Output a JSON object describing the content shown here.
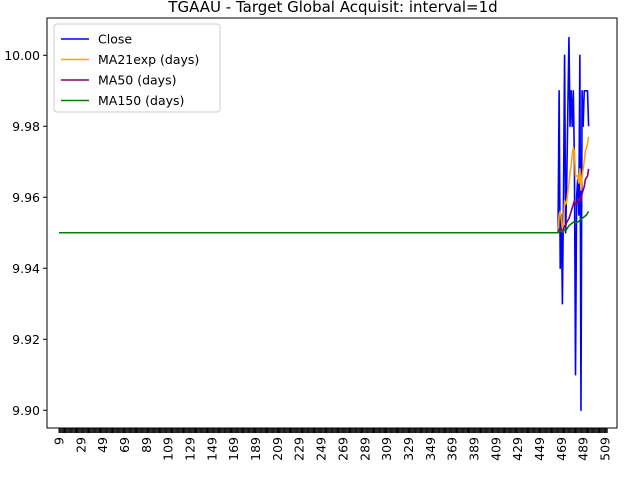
{
  "chart_data": {
    "type": "line",
    "title": "TGAAU - Target Global Acquisit: interval=1d",
    "xlabel": "",
    "ylabel": "",
    "xlim": [
      -2,
      520
    ],
    "ylim": [
      9.895,
      10.0105
    ],
    "grid": false,
    "legend_position": "upper-left",
    "x_ticks": [
      9,
      29,
      49,
      69,
      89,
      109,
      129,
      149,
      169,
      189,
      209,
      229,
      249,
      269,
      289,
      309,
      329,
      349,
      369,
      389,
      409,
      429,
      449,
      469,
      489,
      509
    ],
    "y_ticks": [
      9.9,
      9.92,
      9.94,
      9.96,
      9.98,
      10.0
    ],
    "y_tick_labels": [
      "9.90",
      "9.92",
      "9.94",
      "9.96",
      "9.98",
      "10.00"
    ],
    "categories_range": [
      9,
      511
    ],
    "series": [
      {
        "name": "Close",
        "color": "#0000ff",
        "points": [
          [
            9,
            9.95
          ],
          [
            466,
            9.95
          ],
          [
            467,
            9.99
          ],
          [
            468,
            9.94
          ],
          [
            469,
            9.955
          ],
          [
            470,
            9.93
          ],
          [
            471,
            9.96
          ],
          [
            472,
            10.0
          ],
          [
            473,
            9.95
          ],
          [
            474,
            9.965
          ],
          [
            476,
            10.005
          ],
          [
            477,
            9.98
          ],
          [
            478,
            9.99
          ],
          [
            479,
            9.98
          ],
          [
            480,
            9.99
          ],
          [
            481,
            9.97
          ],
          [
            482,
            9.91
          ],
          [
            483,
            9.96
          ],
          [
            484,
            9.965
          ],
          [
            485,
            9.955
          ],
          [
            486,
            10.0
          ],
          [
            487,
            9.9
          ],
          [
            488,
            9.99
          ],
          [
            489,
            9.98
          ],
          [
            490,
            9.99
          ],
          [
            491,
            9.99
          ],
          [
            493,
            9.99
          ],
          [
            494,
            9.98
          ]
        ]
      },
      {
        "name": "MA21exp (days)",
        "color": "#ffa500",
        "points": [
          [
            9,
            9.95
          ],
          [
            466,
            9.95
          ],
          [
            467,
            9.955
          ],
          [
            468,
            9.956
          ],
          [
            469,
            9.954
          ],
          [
            470,
            9.951
          ],
          [
            471,
            9.952
          ],
          [
            472,
            9.959
          ],
          [
            473,
            9.958
          ],
          [
            474,
            9.959
          ],
          [
            476,
            9.964
          ],
          [
            477,
            9.967
          ],
          [
            478,
            9.969
          ],
          [
            479,
            9.972
          ],
          [
            480,
            9.974
          ],
          [
            481,
            9.973
          ],
          [
            482,
            9.966
          ],
          [
            483,
            9.966
          ],
          [
            484,
            9.966
          ],
          [
            485,
            9.964
          ],
          [
            486,
            9.968
          ],
          [
            487,
            9.962
          ],
          [
            488,
            9.966
          ],
          [
            489,
            9.968
          ],
          [
            490,
            9.97
          ],
          [
            491,
            9.973
          ],
          [
            493,
            9.975
          ],
          [
            494,
            9.977
          ]
        ]
      },
      {
        "name": "MA50 (days)",
        "color": "#800080",
        "points": [
          [
            9,
            9.95
          ],
          [
            466,
            9.95
          ],
          [
            467,
            9.951
          ],
          [
            468,
            9.951
          ],
          [
            469,
            9.951
          ],
          [
            470,
            9.95
          ],
          [
            471,
            9.951
          ],
          [
            472,
            9.952
          ],
          [
            473,
            9.952
          ],
          [
            474,
            9.953
          ],
          [
            476,
            9.954
          ],
          [
            477,
            9.955
          ],
          [
            478,
            9.956
          ],
          [
            479,
            9.957
          ],
          [
            480,
            9.958
          ],
          [
            481,
            9.959
          ],
          [
            482,
            9.958
          ],
          [
            483,
            9.958
          ],
          [
            484,
            9.959
          ],
          [
            485,
            9.959
          ],
          [
            486,
            9.96
          ],
          [
            487,
            9.959
          ],
          [
            488,
            9.961
          ],
          [
            489,
            9.962
          ],
          [
            490,
            9.963
          ],
          [
            491,
            9.965
          ],
          [
            493,
            9.966
          ],
          [
            494,
            9.968
          ]
        ]
      },
      {
        "name": "MA150 (days)",
        "color": "#008000",
        "points": [
          [
            9,
            9.95
          ],
          [
            466,
            9.95
          ],
          [
            468,
            9.9505
          ],
          [
            470,
            9.9502
          ],
          [
            472,
            9.9508
          ],
          [
            474,
            9.951
          ],
          [
            476,
            9.952
          ],
          [
            478,
            9.9525
          ],
          [
            480,
            9.953
          ],
          [
            482,
            9.9528
          ],
          [
            484,
            9.953
          ],
          [
            486,
            9.9535
          ],
          [
            488,
            9.954
          ],
          [
            490,
            9.9545
          ],
          [
            492,
            9.955
          ],
          [
            494,
            9.956
          ]
        ]
      }
    ]
  }
}
